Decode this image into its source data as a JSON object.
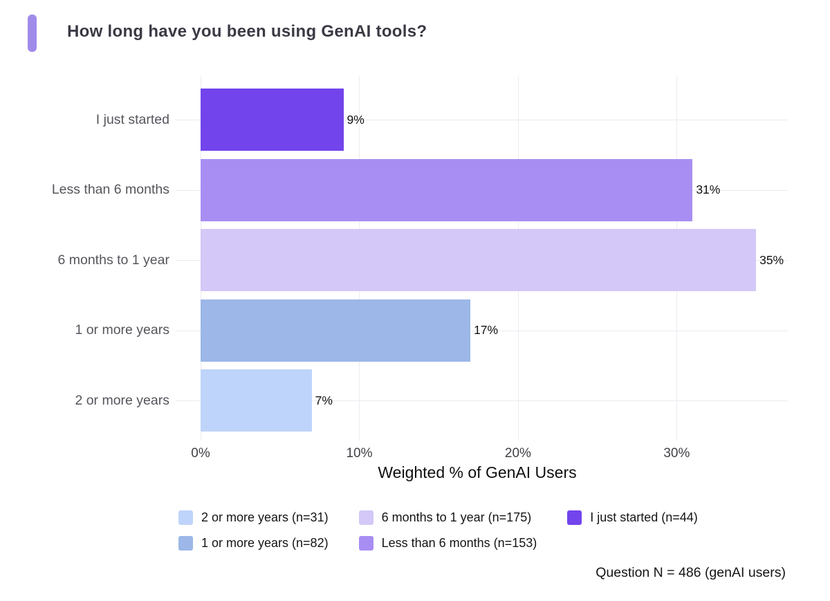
{
  "header": {
    "title": "How long have you been using GenAI tools?",
    "accent_color": "#a18bea"
  },
  "chart_data": {
    "type": "bar",
    "orientation": "horizontal",
    "title": "How long have you been using GenAI tools?",
    "categories": [
      "I just started",
      "Less than 6 months",
      "6 months to 1 year",
      "1 or more years",
      "2 or more years"
    ],
    "values": [
      9,
      31,
      35,
      17,
      7
    ],
    "value_labels": [
      "9%",
      "31%",
      "35%",
      "17%",
      "7%"
    ],
    "bar_colors": [
      "#7244ec",
      "#a88ef2",
      "#d3c8f7",
      "#9cb7e8",
      "#bfd4fa"
    ],
    "xlabel": "Weighted % of GenAI Users",
    "ylabel": "",
    "xlim": [
      0,
      37
    ],
    "x_ticks": [
      0,
      10,
      20,
      30
    ],
    "x_tick_labels": [
      "0%",
      "10%",
      "20%",
      "30%"
    ],
    "grid": true,
    "grid_color": "#ebebf2",
    "legend_position": "bottom",
    "legend": [
      {
        "label": "2 or more years (n=31)",
        "color": "#bfd4fa"
      },
      {
        "label": "1 or more years (n=82)",
        "color": "#9cb7e8"
      },
      {
        "label": "6 months to 1 year (n=175)",
        "color": "#d3c8f7"
      },
      {
        "label": "Less than 6 months (n=153)",
        "color": "#a88ef2"
      },
      {
        "label": "I just started (n=44)",
        "color": "#7244ec"
      }
    ]
  },
  "footnote": "Question N = 486 (genAI users)"
}
